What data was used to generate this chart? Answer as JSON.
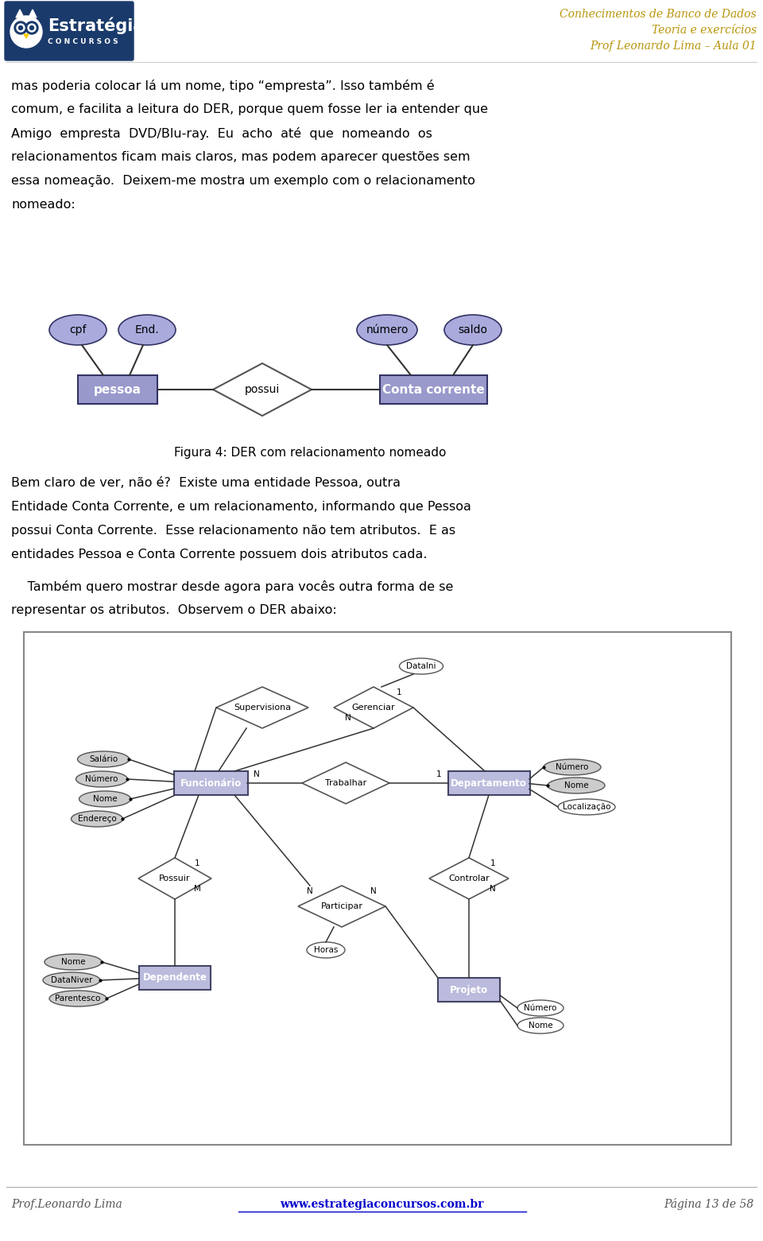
{
  "page_bg": "#ffffff",
  "logo_bg": "#1a3a6b",
  "header_right_lines": [
    "Conhecimentos de Banco de Dados",
    "Teoria e exercícios",
    "Prof Leonardo Lima – Aula 01"
  ],
  "header_right_color": "#b8960c",
  "body_text_lines": [
    "mas poderia colocar lá um nome, tipo “empresta”. Isso também é",
    "comum, e facilita a leitura do DER, porque quem fosse ler ia entender que",
    "Amigo  empresta  DVD/Blu-ray.  Eu  acho  até  que  nomeando  os",
    "relacionamentos ficam mais claros, mas podem aparecer questões sem",
    "essa nomeação.  Deixem-me mostra um exemplo com o relacionamento",
    "nomeado:"
  ],
  "body_text2_lines": [
    "Bem claro de ver, não é?  Existe uma entidade Pessoa, outra",
    "Entidade Conta Corrente, e um relacionamento, informando que Pessoa",
    "possui Conta Corrente.  Esse relacionamento não tem atributos.  E as",
    "entidades Pessoa e Conta Corrente possuem dois atributos cada."
  ],
  "body_text3_lines": [
    "    Também quero mostrar desde agora para vocês outra forma de se",
    "representar os atributos.  Observem o DER abaixo:"
  ],
  "figura4_caption": "Figura 4: DER com relacionamento nomeado",
  "footer_left": "Prof.Leonardo Lima",
  "footer_center": "www.estrategiaconcursos.com.br",
  "footer_right": "Página 13 de 58",
  "entity_fill": "#9999cc",
  "entity_stroke": "#333366",
  "attr_fill": "#aaaadd",
  "attr_stroke": "#333366",
  "diamond_fill": "#ffffff",
  "diamond_stroke": "#555555"
}
